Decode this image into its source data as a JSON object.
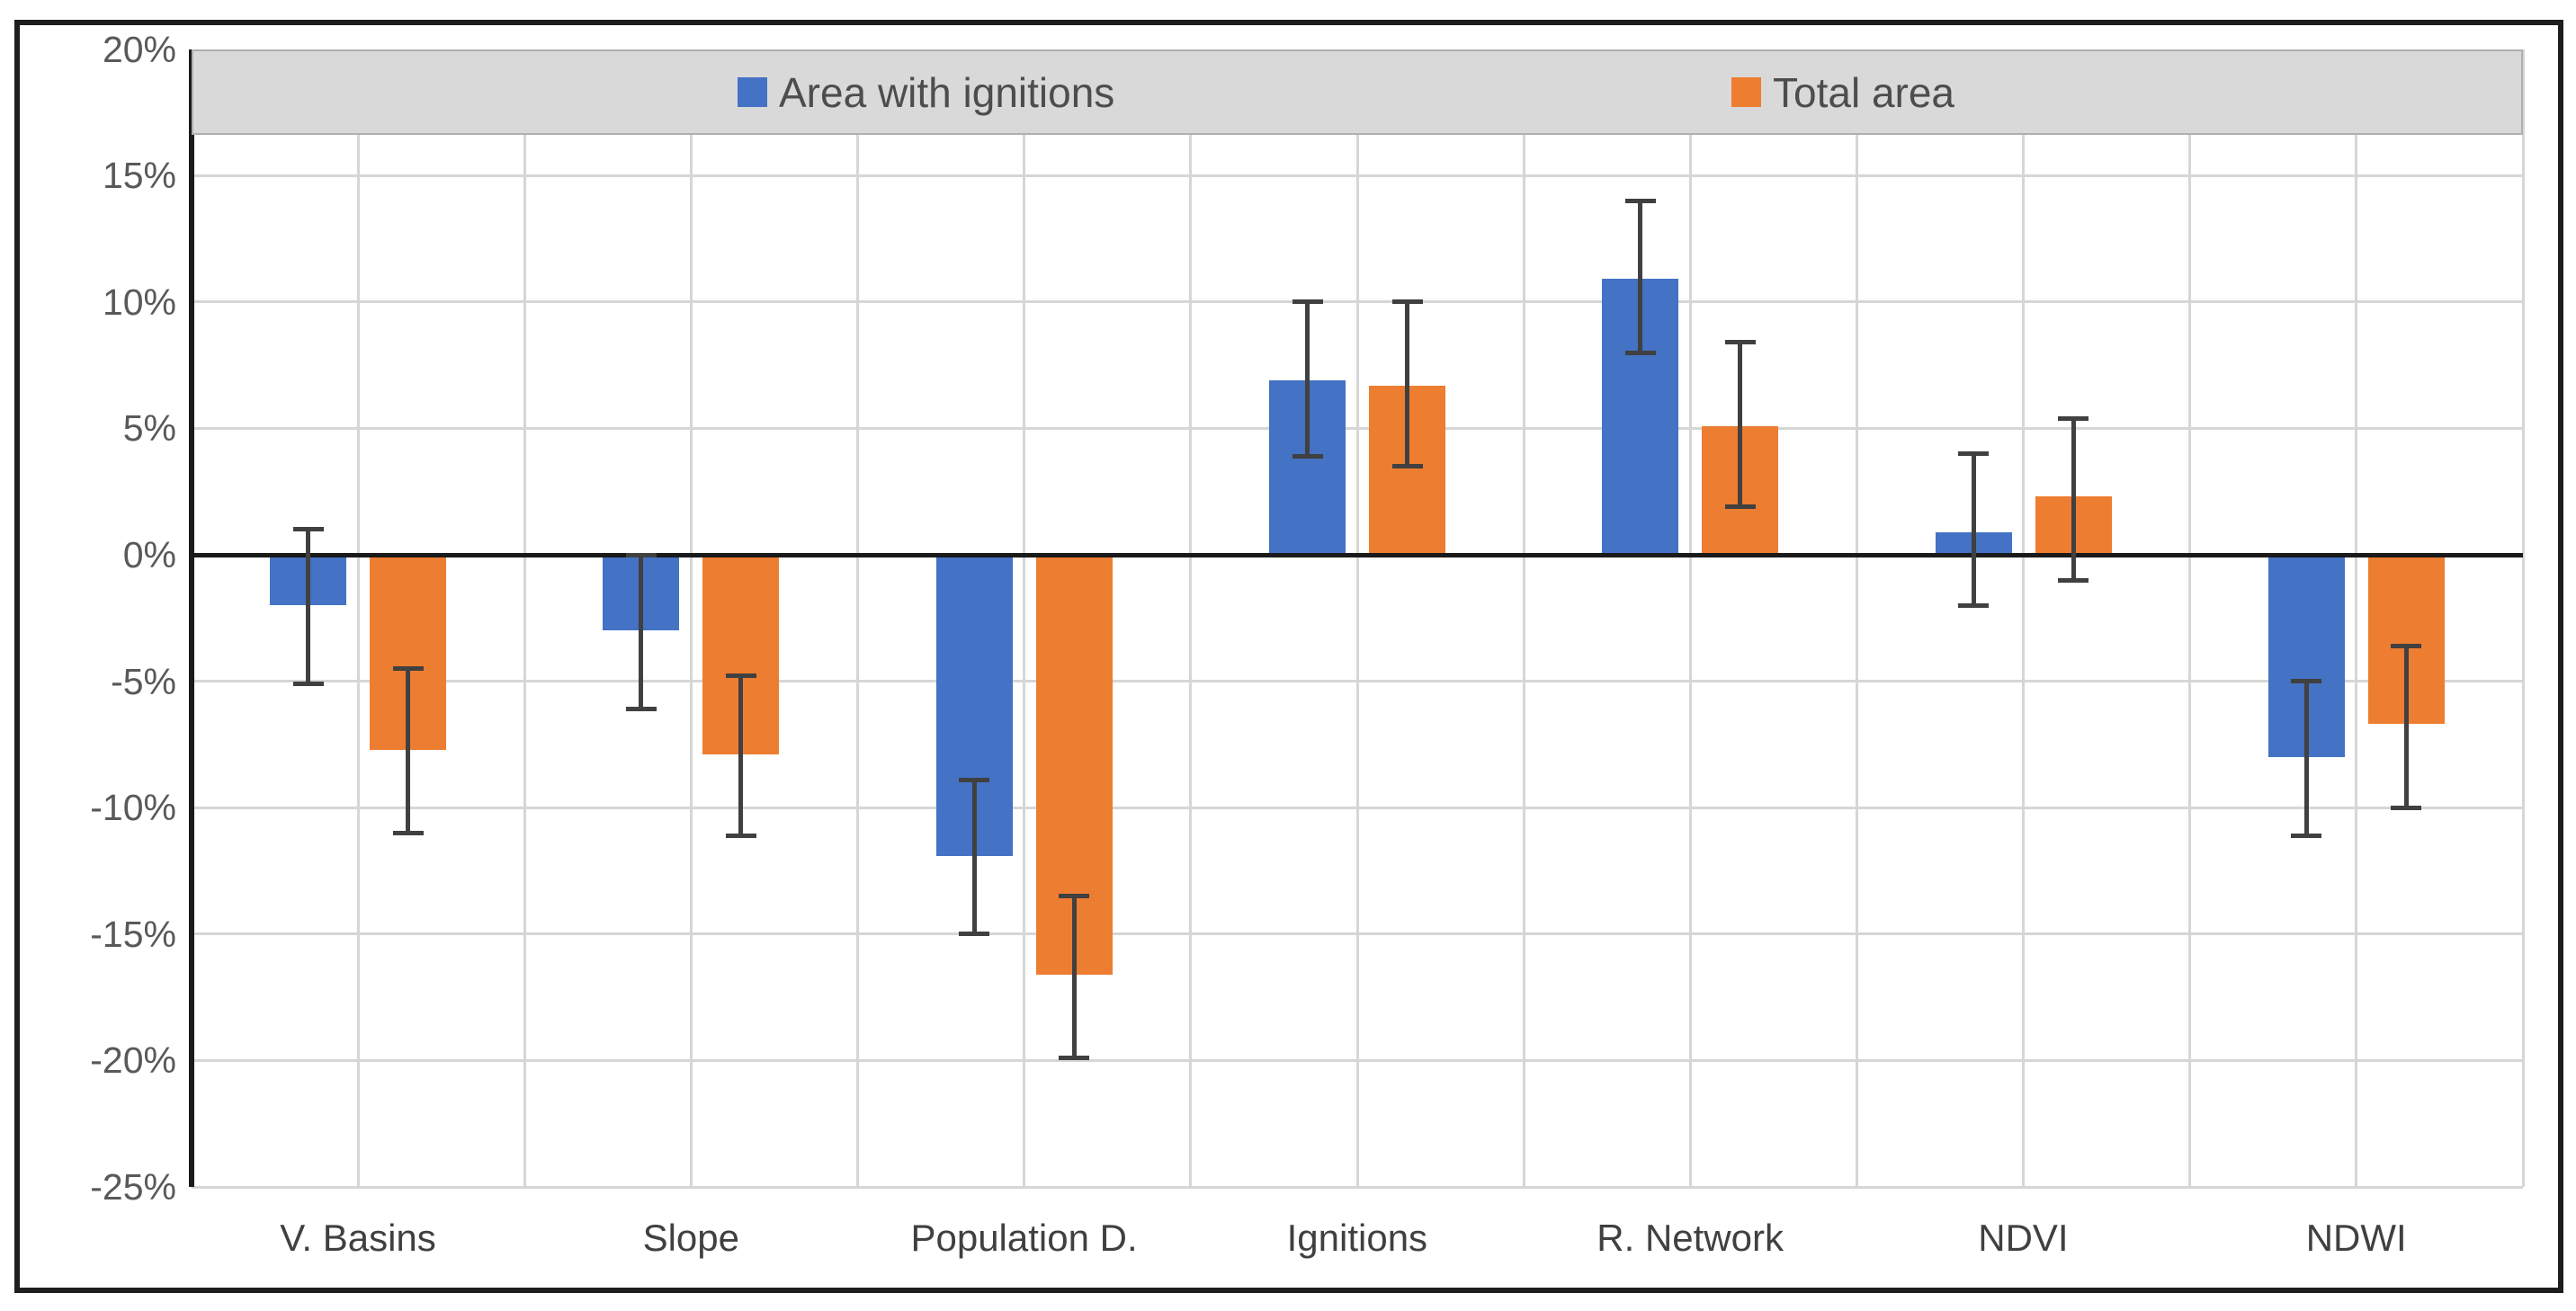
{
  "chart_data": {
    "type": "bar",
    "title": "",
    "categories": [
      "V. Basins",
      "Slope",
      "Population D.",
      "Ignitions",
      "R. Network",
      "NDVI",
      "NDWI"
    ],
    "series": [
      {
        "name": "Area with ignitions",
        "color": "#4472C4",
        "values": [
          -2.0,
          -3.0,
          -11.9,
          6.9,
          10.9,
          0.9,
          -8.0
        ],
        "error_high": [
          1.0,
          0.0,
          -8.9,
          10.0,
          14.0,
          4.0,
          -5.0
        ],
        "error_low": [
          -5.1,
          -6.1,
          -15.0,
          3.9,
          8.0,
          -2.0,
          -11.1
        ]
      },
      {
        "name": "Total area",
        "color": "#ED7D31",
        "values": [
          -7.7,
          -7.9,
          -16.6,
          6.7,
          5.1,
          2.3,
          -6.7
        ],
        "error_high": [
          -4.5,
          -4.8,
          -13.5,
          10.0,
          8.4,
          5.4,
          -3.6
        ],
        "error_low": [
          -11.0,
          -11.1,
          -19.9,
          3.5,
          1.9,
          -1.0,
          -10.0
        ]
      }
    ],
    "y_axis": {
      "tick_labels": [
        "20%",
        "15%",
        "10%",
        "5%",
        "0%",
        "-5%",
        "-10%",
        "-15%",
        "-20%",
        "-25%"
      ],
      "tick_values": [
        20,
        15,
        10,
        5,
        0,
        -5,
        -10,
        -15,
        -20,
        -25
      ],
      "ylim": [
        -25,
        20
      ]
    },
    "xlabel": "",
    "ylabel": "",
    "grid": true,
    "legend_position": "top",
    "error_bar_color": "#404040",
    "colors": {
      "gridline": "#D6D6D6",
      "axis": "#1a1a1a",
      "y_tick_text": "#595959",
      "x_tick_text": "#404040",
      "legend_bg": "#D9D9D9",
      "legend_border": "#AFAFAF",
      "legend_text": "#4d4d4d",
      "frame": "#1e1e1e"
    }
  }
}
